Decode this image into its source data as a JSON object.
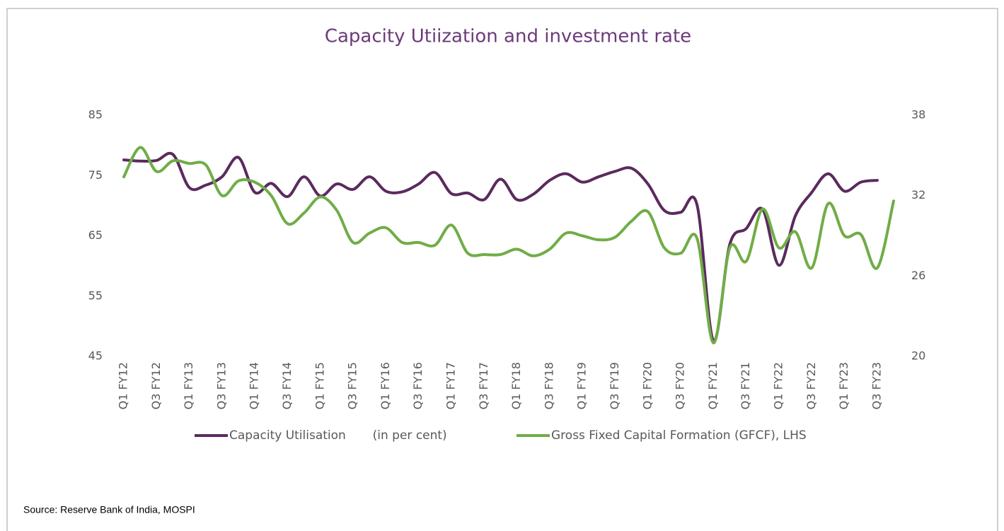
{
  "chart_data": {
    "type": "line",
    "title": "Capacity Utiization and investment rate",
    "source": "Source: Reserve Bank of India, MOSPI",
    "categories": [
      "Q1 FY12",
      null,
      "Q3 FY12",
      null,
      "Q1 FY13",
      null,
      "Q3 FY13",
      null,
      "Q1 FY14",
      null,
      "Q3 FY14",
      null,
      "Q1 FY15",
      null,
      "Q3 FY15",
      null,
      "Q1 FY16",
      null,
      "Q3 FY16",
      null,
      "Q1 FY17",
      null,
      "Q3 FY17",
      null,
      "Q1 FY18",
      null,
      "Q3 FY18",
      null,
      "Q1 FY19",
      null,
      "Q3 FY19",
      null,
      "Q1 FY20",
      null,
      "Q3 FY20",
      null,
      "Q1 FY21",
      null,
      "Q3 FY21",
      null,
      "Q1 FY22",
      null,
      "Q3 FY22",
      null,
      "Q1 FY23",
      null,
      "Q3 FY23",
      null
    ],
    "series": [
      {
        "name": "Capacity Utilisation       (in per cent)",
        "color": "#5b2a5e",
        "axis": "y",
        "values": [
          77.6,
          77.4,
          77.5,
          78.5,
          73.0,
          73.4,
          74.8,
          78.0,
          72.2,
          73.7,
          71.5,
          74.8,
          71.6,
          73.6,
          72.7,
          74.8,
          72.4,
          72.3,
          73.6,
          75.5,
          72.0,
          72.1,
          71.0,
          74.4,
          71.0,
          71.9,
          74.2,
          75.3,
          73.9,
          74.8,
          75.7,
          76.2,
          73.6,
          69.2,
          68.9,
          70.1,
          47.6,
          63.6,
          66.2,
          69.4,
          60.1,
          68.3,
          72.2,
          75.3,
          72.4,
          73.9,
          74.2,
          null
        ]
      },
      {
        "name": "Gross Fixed Capital Formation (GFCF), LHS",
        "color": "#70ad47",
        "axis": "y2",
        "values": [
          33.4,
          35.6,
          33.8,
          34.6,
          34.4,
          34.3,
          32.0,
          33.1,
          33.0,
          32.0,
          29.9,
          30.7,
          31.9,
          30.9,
          28.5,
          29.2,
          29.6,
          28.5,
          28.5,
          28.3,
          29.8,
          27.7,
          27.6,
          27.6,
          28.0,
          27.5,
          28.0,
          29.2,
          29.0,
          28.7,
          28.9,
          30.1,
          30.8,
          28.1,
          27.7,
          28.8,
          21.0,
          28.1,
          27.1,
          31.0,
          28.1,
          29.3,
          26.6,
          31.4,
          29.0,
          29.1,
          26.6,
          31.6
        ]
      }
    ],
    "ylim": [
      45,
      85
    ],
    "yticks": [
      45,
      55,
      65,
      75,
      85
    ],
    "y2lim": [
      20,
      38
    ],
    "y2ticks": [
      20,
      26,
      32,
      38
    ],
    "grid": false,
    "legend": "bottom"
  }
}
